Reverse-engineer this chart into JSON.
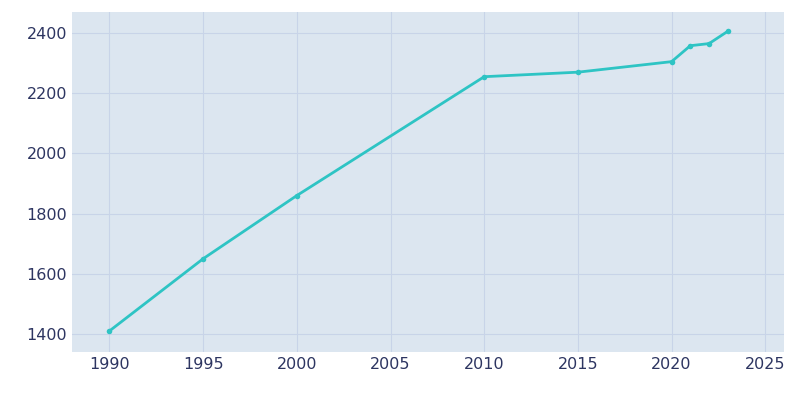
{
  "years": [
    1990,
    1995,
    2000,
    2010,
    2015,
    2020,
    2021,
    2022,
    2023
  ],
  "population": [
    1410,
    1650,
    1860,
    2255,
    2270,
    2305,
    2358,
    2365,
    2406
  ],
  "line_color": "#2EC4C4",
  "bg_color": "#dce6f0",
  "plot_bg_color": "#dce6f0",
  "outer_bg_color": "#ffffff",
  "xlim": [
    1988,
    2026
  ],
  "ylim": [
    1340,
    2470
  ],
  "xticks": [
    1990,
    1995,
    2000,
    2005,
    2010,
    2015,
    2020,
    2025
  ],
  "yticks": [
    1400,
    1600,
    1800,
    2000,
    2200,
    2400
  ],
  "tick_label_color": "#2d3561",
  "linewidth": 2.0,
  "grid_color": "#c8d4e8",
  "marker_size": 4.0
}
